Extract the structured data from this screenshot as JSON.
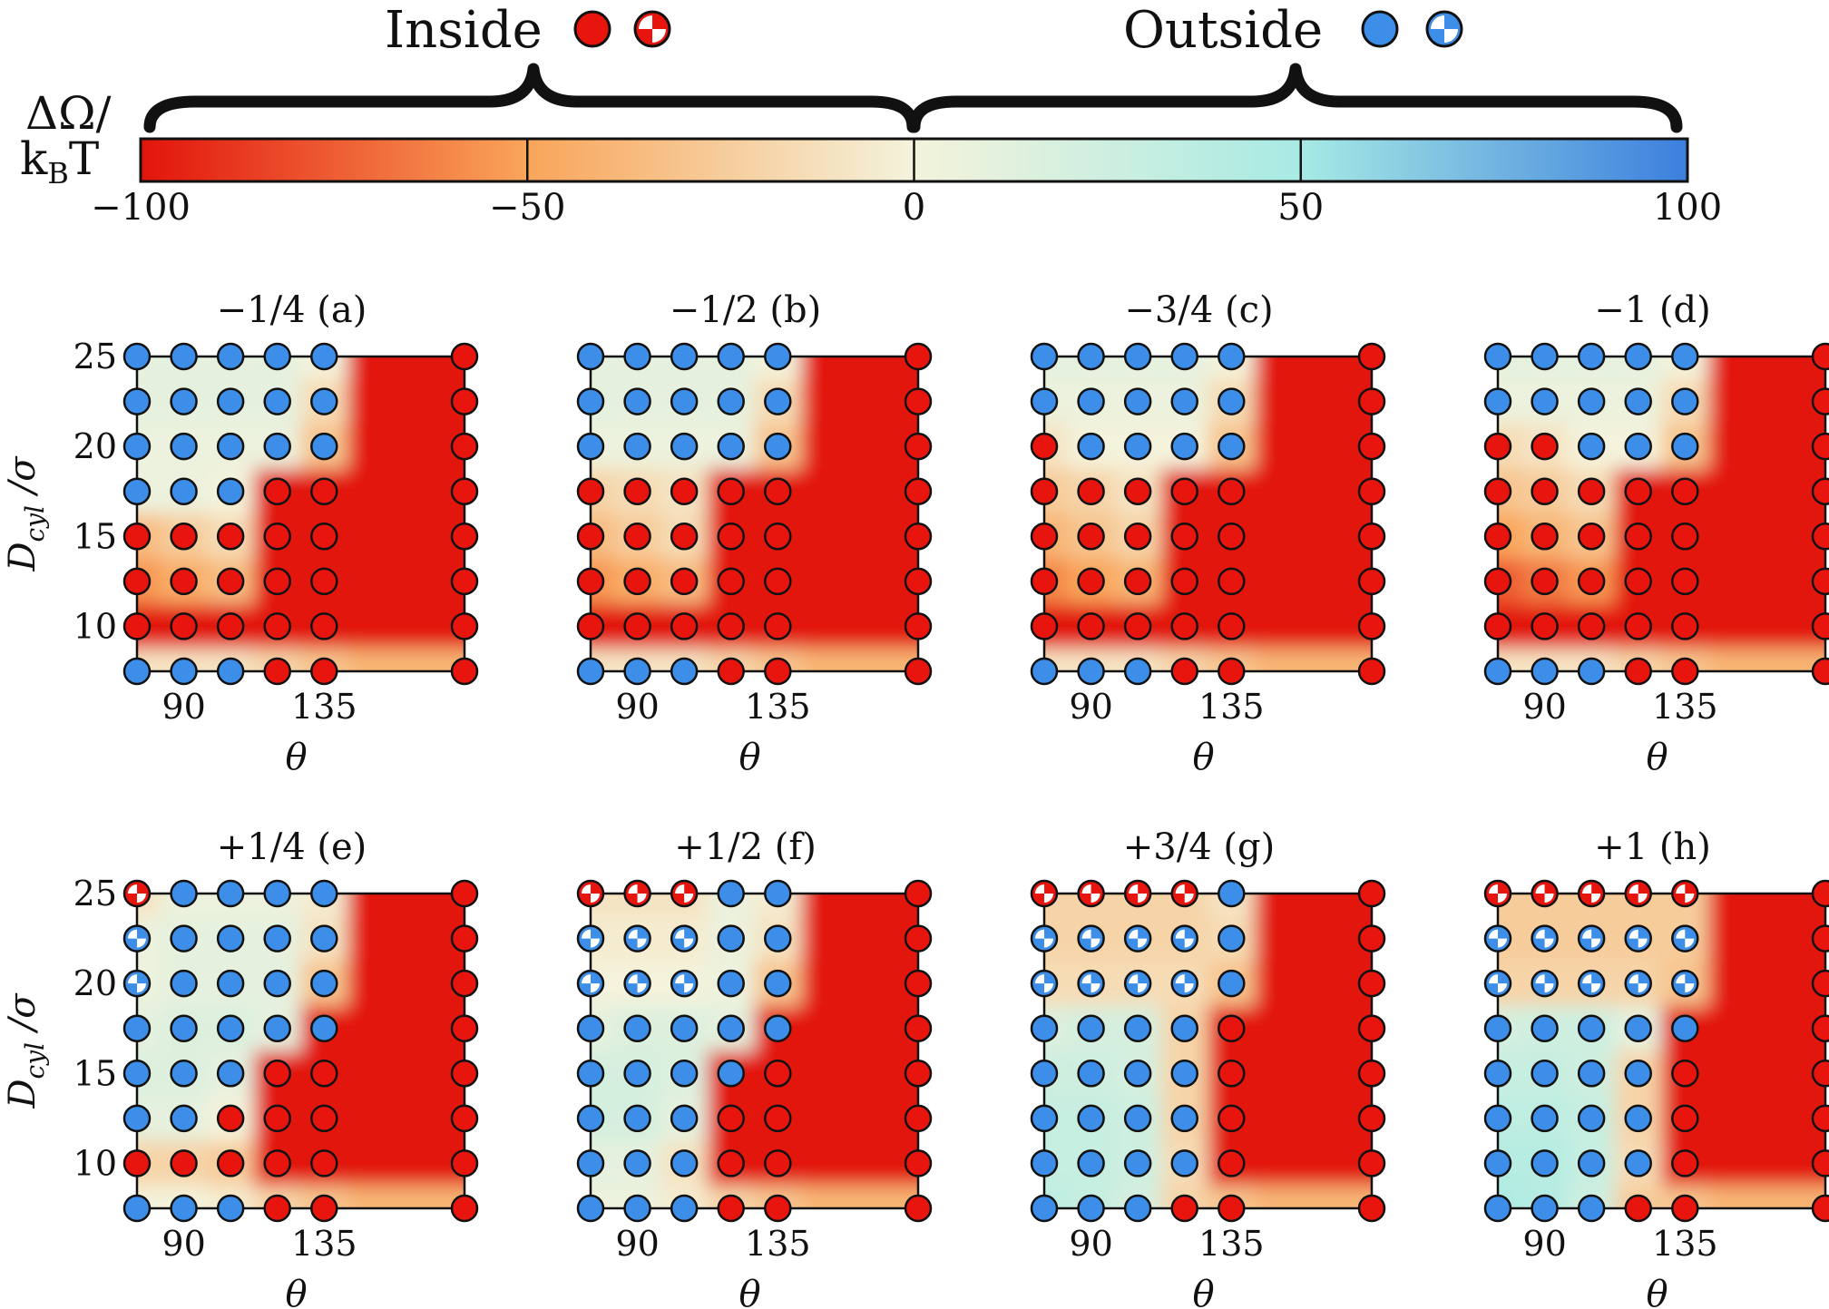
{
  "legend": {
    "inside_label": "Inside",
    "outside_label": "Outside",
    "cbar_label_line1": "ΔΩ/",
    "cbar_label_line2": "k",
    "cbar_label_sub": "B",
    "cbar_label_tail": "T",
    "ticks": [
      "−100",
      "−50",
      "0",
      "50",
      "100"
    ],
    "range": [
      -100,
      100
    ],
    "colors": {
      "inside": "#e8150f",
      "outside": "#3d8ee8",
      "mid": "#f2f2d8"
    }
  },
  "axes": {
    "xlabel": "θ",
    "ylabel_main": "D",
    "ylabel_sub": "cyl",
    "ylabel_tail": " /σ",
    "xticks": [
      "90",
      "135"
    ],
    "yticks": [
      "25",
      "20",
      "15",
      "10"
    ]
  },
  "chart_data": {
    "type": "heatmap",
    "x": [
      75,
      90,
      105,
      120,
      135,
      150,
      180
    ],
    "y": [
      25,
      22.5,
      20,
      17.5,
      15,
      12.5,
      10,
      7.5
    ],
    "xlabel": "θ",
    "ylabel": "Dcyl /σ",
    "xlim": [
      75,
      180
    ],
    "ylim": [
      7.5,
      25
    ],
    "xticks": [
      90,
      135
    ],
    "yticks": [
      10,
      15,
      20,
      25
    ],
    "colorbar": {
      "label": "ΔΩ/kBT",
      "range": [
        -100,
        100
      ],
      "ticks": [
        -100,
        -50,
        0,
        50,
        100
      ]
    },
    "marker_legend": {
      "O": "Outside",
      "I": "Inside",
      "o": "Outside (checkered)",
      "i": "Inside (checkered)"
    },
    "panels": [
      {
        "title": "−1/4  (a)",
        "grid": [
          "OOOOOI",
          "OOOOOI",
          "OOOOOI",
          "OOOIII",
          "IIIIII",
          "IIIIII",
          "IIIIII",
          "OOOIII"
        ],
        "heat": [
          [
            10,
            10,
            10,
            10,
            0,
            -100
          ],
          [
            10,
            10,
            10,
            10,
            -15,
            -100
          ],
          [
            5,
            5,
            5,
            5,
            -30,
            -100
          ],
          [
            5,
            5,
            0,
            -100,
            -100,
            -100
          ],
          [
            -35,
            -25,
            -15,
            -100,
            -100,
            -100
          ],
          [
            -55,
            -45,
            -35,
            -100,
            -100,
            -100
          ],
          [
            -100,
            -100,
            -100,
            -100,
            -100,
            -100
          ],
          [
            -10,
            -10,
            -10,
            -20,
            -30,
            -40
          ]
        ]
      },
      {
        "title": "−1/2  (b)",
        "grid": [
          "OOOOOI",
          "OOOOOI",
          "OOOOOI",
          "IIIIII",
          "IIIIII",
          "IIIIII",
          "IIIIII",
          "OOOIII"
        ],
        "heat": [
          [
            10,
            10,
            10,
            10,
            0,
            -100
          ],
          [
            10,
            10,
            10,
            10,
            -15,
            -100
          ],
          [
            5,
            5,
            5,
            5,
            -30,
            -100
          ],
          [
            -20,
            -15,
            -10,
            -100,
            -100,
            -100
          ],
          [
            -35,
            -25,
            -15,
            -100,
            -100,
            -100
          ],
          [
            -55,
            -45,
            -35,
            -100,
            -100,
            -100
          ],
          [
            -100,
            -100,
            -100,
            -100,
            -100,
            -100
          ],
          [
            -10,
            -10,
            -10,
            -20,
            -30,
            -40
          ]
        ]
      },
      {
        "title": "−3/4  (c)",
        "grid": [
          "OOOOOI",
          "OOOOOI",
          "IOOOOI",
          "IIIIII",
          "IIIIII",
          "IIIIII",
          "IIIIII",
          "OOOIII"
        ],
        "heat": [
          [
            10,
            10,
            10,
            10,
            0,
            -100
          ],
          [
            5,
            5,
            5,
            5,
            -15,
            -100
          ],
          [
            -10,
            0,
            0,
            0,
            -30,
            -100
          ],
          [
            -25,
            -20,
            -10,
            -100,
            -100,
            -100
          ],
          [
            -40,
            -30,
            -20,
            -100,
            -100,
            -100
          ],
          [
            -60,
            -50,
            -40,
            -100,
            -100,
            -100
          ],
          [
            -100,
            -100,
            -100,
            -100,
            -100,
            -100
          ],
          [
            -10,
            -10,
            -10,
            -20,
            -30,
            -40
          ]
        ]
      },
      {
        "title": "−1  (d)",
        "grid": [
          "OOOOOI",
          "OOOOOI",
          "IIOOOI",
          "IIIIII",
          "IIIIII",
          "IIIIII",
          "IIIIII",
          "OOOIII"
        ],
        "heat": [
          [
            10,
            10,
            10,
            10,
            0,
            -100
          ],
          [
            5,
            5,
            5,
            5,
            -15,
            -100
          ],
          [
            -15,
            -10,
            0,
            0,
            -30,
            -100
          ],
          [
            -30,
            -25,
            -15,
            -100,
            -100,
            -100
          ],
          [
            -50,
            -40,
            -30,
            -100,
            -100,
            -100
          ],
          [
            -75,
            -65,
            -55,
            -100,
            -100,
            -100
          ],
          [
            -100,
            -100,
            -100,
            -100,
            -100,
            -100
          ],
          [
            -10,
            -10,
            -10,
            -20,
            -30,
            -40
          ]
        ]
      },
      {
        "title": "+1/4  (e)",
        "grid": [
          "iOOOOI",
          "oOOOOI",
          "oOOOOI",
          "OOOOOI",
          "OOOIII",
          "OOIIII",
          "IIIIII",
          "OOOIII"
        ],
        "heat": [
          [
            -10,
            5,
            5,
            5,
            -5,
            -100
          ],
          [
            5,
            10,
            10,
            10,
            -10,
            -100
          ],
          [
            5,
            10,
            10,
            10,
            -30,
            -100
          ],
          [
            10,
            15,
            15,
            10,
            -100,
            -100
          ],
          [
            15,
            15,
            10,
            -100,
            -100,
            -100
          ],
          [
            10,
            10,
            0,
            -100,
            -100,
            -100
          ],
          [
            -20,
            -20,
            -25,
            -100,
            -100,
            -100
          ],
          [
            0,
            0,
            -5,
            -20,
            -30,
            -40
          ]
        ]
      },
      {
        "title": "+1/2  (f)",
        "grid": [
          "iiiOOI",
          "oooOOI",
          "oooOOI",
          "OOOOOI",
          "OOOOII",
          "OOOIII",
          "OOOIII",
          "OOOIII"
        ],
        "heat": [
          [
            -10,
            -10,
            -10,
            5,
            -5,
            -100
          ],
          [
            -5,
            -5,
            -5,
            5,
            -10,
            -100
          ],
          [
            0,
            0,
            0,
            5,
            -30,
            -100
          ],
          [
            10,
            15,
            15,
            10,
            -100,
            -100
          ],
          [
            20,
            20,
            15,
            -100,
            -100,
            -100
          ],
          [
            20,
            20,
            10,
            -100,
            -100,
            -100
          ],
          [
            10,
            10,
            -10,
            -100,
            -100,
            -100
          ],
          [
            5,
            5,
            -5,
            -20,
            -30,
            -40
          ]
        ]
      },
      {
        "title": "+3/4  (g)",
        "grid": [
          "iiiiOI",
          "ooooOI",
          "ooooOI",
          "OOOOII",
          "OOOOII",
          "OOOOII",
          "OOOOII",
          "OOOIII"
        ],
        "heat": [
          [
            -20,
            -20,
            -20,
            -20,
            -10,
            -100
          ],
          [
            -20,
            -20,
            -20,
            -20,
            -15,
            -100
          ],
          [
            -15,
            -15,
            -15,
            -15,
            -30,
            -100
          ],
          [
            15,
            20,
            20,
            -20,
            -100,
            -100
          ],
          [
            25,
            25,
            20,
            -20,
            -100,
            -100
          ],
          [
            30,
            30,
            25,
            -20,
            -100,
            -100
          ],
          [
            30,
            30,
            25,
            -15,
            -100,
            -100
          ],
          [
            35,
            30,
            20,
            -20,
            -30,
            -40
          ]
        ]
      },
      {
        "title": "+1  (h)",
        "grid": [
          "iiiiiI",
          "oooooI",
          "oooooI",
          "OOOOOI",
          "OOOOII",
          "OOOOII",
          "OOOOII",
          "OOOIII"
        ],
        "heat": [
          [
            -25,
            -25,
            -25,
            -25,
            -25,
            -100
          ],
          [
            -25,
            -25,
            -25,
            -25,
            -25,
            -100
          ],
          [
            -20,
            -20,
            -20,
            -20,
            -30,
            -100
          ],
          [
            20,
            25,
            25,
            10,
            -100,
            -100
          ],
          [
            30,
            30,
            25,
            -20,
            -100,
            -100
          ],
          [
            35,
            35,
            30,
            -20,
            -100,
            -100
          ],
          [
            40,
            40,
            30,
            -15,
            -100,
            -100
          ],
          [
            45,
            40,
            25,
            -25,
            -30,
            -40
          ]
        ]
      }
    ]
  }
}
